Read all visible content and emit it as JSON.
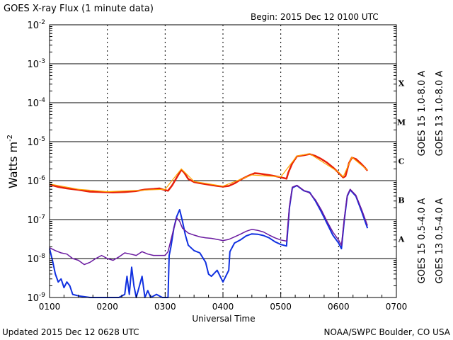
{
  "title": "GOES X-ray Flux (1 minute data)",
  "begin": "Begin: 2015 Dec 12 0100 UTC",
  "updated": "Updated 2015 Dec 12 0628 UTC",
  "credit": "NOAA/SWPC Boulder, CO USA",
  "chart_data": {
    "type": "line",
    "xlabel": "Universal Time",
    "ylabel": "Watts m",
    "ylabel_sup": "-2",
    "y_scale": "log",
    "ylim": [
      1e-09,
      0.01
    ],
    "xlim": [
      0,
      6
    ],
    "x_ticks": [
      {
        "v": 0,
        "label": "0100"
      },
      {
        "v": 1,
        "label": "0200"
      },
      {
        "v": 2,
        "label": "0300"
      },
      {
        "v": 3,
        "label": "0400"
      },
      {
        "v": 4,
        "label": "0500"
      },
      {
        "v": 5,
        "label": "0600"
      },
      {
        "v": 6,
        "label": "0700"
      }
    ],
    "y_ticks": [
      {
        "exp": -9,
        "base": "10",
        "sup": "-9"
      },
      {
        "exp": -8,
        "base": "10",
        "sup": "-8"
      },
      {
        "exp": -7,
        "base": "10",
        "sup": "-7"
      },
      {
        "exp": -6,
        "base": "10",
        "sup": "-6"
      },
      {
        "exp": -5,
        "base": "10",
        "sup": "-5"
      },
      {
        "exp": -4,
        "base": "10",
        "sup": "-4"
      },
      {
        "exp": -3,
        "base": "10",
        "sup": "-3"
      },
      {
        "exp": -2,
        "base": "10",
        "sup": "-2"
      }
    ],
    "flare_classes": [
      {
        "label": "A",
        "exp": -7.5
      },
      {
        "label": "B",
        "exp": -6.5
      },
      {
        "label": "C",
        "exp": -5.5
      },
      {
        "label": "M",
        "exp": -4.5
      },
      {
        "label": "X",
        "exp": -3.5
      }
    ],
    "grid": "horizontal lines at each decade, dashed vertical lines at each hour",
    "legend_placement": "right side, vertical",
    "series": [
      {
        "name": "GOES 15 1.0-8.0 A",
        "color": "#e8200a",
        "width": 2.5,
        "points": [
          [
            0,
            7.9e-07
          ],
          [
            0.15,
            6.9e-07
          ],
          [
            0.3,
            6.3e-07
          ],
          [
            0.5,
            5.8e-07
          ],
          [
            0.7,
            5.2e-07
          ],
          [
            0.9,
            5.1e-07
          ],
          [
            1.1,
            5e-07
          ],
          [
            1.3,
            5.1e-07
          ],
          [
            1.5,
            5.4e-07
          ],
          [
            1.65,
            5.9e-07
          ],
          [
            1.8,
            6.1e-07
          ],
          [
            1.9,
            6.3e-07
          ],
          [
            2.0,
            5.7e-07
          ],
          [
            2.05,
            5.5e-07
          ],
          [
            2.12,
            7.5e-07
          ],
          [
            2.2,
            1.2e-06
          ],
          [
            2.28,
            1.9e-06
          ],
          [
            2.33,
            1.6e-06
          ],
          [
            2.4,
            1.1e-06
          ],
          [
            2.5,
            9.2e-07
          ],
          [
            2.6,
            8.6e-07
          ],
          [
            2.75,
            7.9e-07
          ],
          [
            2.9,
            7.3e-07
          ],
          [
            3.0,
            7e-07
          ],
          [
            3.1,
            7.3e-07
          ],
          [
            3.2,
            8.5e-07
          ],
          [
            3.3,
            1.05e-06
          ],
          [
            3.45,
            1.35e-06
          ],
          [
            3.55,
            1.55e-06
          ],
          [
            3.65,
            1.5e-06
          ],
          [
            3.75,
            1.42e-06
          ],
          [
            3.85,
            1.35e-06
          ],
          [
            4.0,
            1.22e-06
          ],
          [
            4.1,
            1.12e-06
          ],
          [
            4.13,
            1.6e-06
          ],
          [
            4.2,
            2.8e-06
          ],
          [
            4.28,
            4.2e-06
          ],
          [
            4.4,
            4.5e-06
          ],
          [
            4.5,
            4.8e-06
          ],
          [
            4.6,
            4.3e-06
          ],
          [
            4.7,
            3.6e-06
          ],
          [
            4.8,
            2.9e-06
          ],
          [
            4.9,
            2.2e-06
          ],
          [
            5.0,
            1.6e-06
          ],
          [
            5.08,
            1.2e-06
          ],
          [
            5.12,
            1.3e-06
          ],
          [
            5.18,
            2.8e-06
          ],
          [
            5.23,
            3.9e-06
          ],
          [
            5.3,
            3.6e-06
          ],
          [
            5.38,
            2.8e-06
          ],
          [
            5.45,
            2.2e-06
          ],
          [
            5.5,
            1.8e-06
          ]
        ]
      },
      {
        "name": "GOES 13 1.0-8.0 A",
        "color": "#ffa500",
        "width": 1.2,
        "points": [
          [
            0,
            8.2e-07
          ],
          [
            0.5,
            6e-07
          ],
          [
            1.0,
            5.2e-07
          ],
          [
            1.5,
            5.6e-07
          ],
          [
            2.0,
            6e-07
          ],
          [
            2.28,
            2e-06
          ],
          [
            2.5,
            9.5e-07
          ],
          [
            3.0,
            7.2e-07
          ],
          [
            3.5,
            1.4e-06
          ],
          [
            4.0,
            1.25e-06
          ],
          [
            4.28,
            4.3e-06
          ],
          [
            4.5,
            4.9e-06
          ],
          [
            5.0,
            1.65e-06
          ],
          [
            5.08,
            1.25e-06
          ],
          [
            5.23,
            4e-06
          ],
          [
            5.5,
            1.85e-06
          ]
        ]
      },
      {
        "name": "GOES 15 0.5-4.0 A",
        "color": "#1030e0",
        "width": 2,
        "points": [
          [
            0,
            1.8e-08
          ],
          [
            0.05,
            9e-09
          ],
          [
            0.1,
            4e-09
          ],
          [
            0.15,
            2.5e-09
          ],
          [
            0.2,
            3e-09
          ],
          [
            0.25,
            1.8e-09
          ],
          [
            0.3,
            2.5e-09
          ],
          [
            0.35,
            2e-09
          ],
          [
            0.4,
            1.2e-09
          ],
          [
            0.5,
            1.1e-09
          ],
          [
            0.7,
            1e-09
          ],
          [
            1.0,
            1e-09
          ],
          [
            1.2,
            1e-09
          ],
          [
            1.3,
            1.2e-09
          ],
          [
            1.34,
            3.5e-09
          ],
          [
            1.38,
            1.2e-09
          ],
          [
            1.42,
            6e-09
          ],
          [
            1.46,
            2e-09
          ],
          [
            1.5,
            1e-09
          ],
          [
            1.6,
            3.5e-09
          ],
          [
            1.65,
            1e-09
          ],
          [
            1.7,
            1.5e-09
          ],
          [
            1.75,
            1e-09
          ],
          [
            1.85,
            1.2e-09
          ],
          [
            1.95,
            1e-09
          ],
          [
            2.05,
            1e-09
          ],
          [
            2.07,
            1.2e-08
          ],
          [
            2.1,
            2e-08
          ],
          [
            2.15,
            6e-08
          ],
          [
            2.2,
            1.2e-07
          ],
          [
            2.25,
            1.8e-07
          ],
          [
            2.3,
            9e-08
          ],
          [
            2.35,
            4e-08
          ],
          [
            2.4,
            2.2e-08
          ],
          [
            2.5,
            1.6e-08
          ],
          [
            2.6,
            1.4e-08
          ],
          [
            2.7,
            8e-09
          ],
          [
            2.75,
            4e-09
          ],
          [
            2.8,
            3.5e-09
          ],
          [
            2.9,
            5e-09
          ],
          [
            3.0,
            2.5e-09
          ],
          [
            3.1,
            5e-09
          ],
          [
            3.12,
            1.5e-08
          ],
          [
            3.2,
            2.5e-08
          ],
          [
            3.3,
            3e-08
          ],
          [
            3.4,
            3.8e-08
          ],
          [
            3.5,
            4.3e-08
          ],
          [
            3.6,
            4.2e-08
          ],
          [
            3.7,
            3.9e-08
          ],
          [
            3.8,
            3.4e-08
          ],
          [
            3.9,
            2.7e-08
          ],
          [
            4.0,
            2.3e-08
          ],
          [
            4.1,
            2.1e-08
          ],
          [
            4.15,
            2e-07
          ],
          [
            4.2,
            6.5e-07
          ],
          [
            4.28,
            7.5e-07
          ],
          [
            4.4,
            5.5e-07
          ],
          [
            4.5,
            5e-07
          ],
          [
            4.6,
            3e-07
          ],
          [
            4.7,
            1.6e-07
          ],
          [
            4.8,
            8e-08
          ],
          [
            4.9,
            4e-08
          ],
          [
            5.0,
            2.5e-08
          ],
          [
            5.05,
            1.8e-08
          ],
          [
            5.1,
            1e-07
          ],
          [
            5.15,
            4e-07
          ],
          [
            5.2,
            5.8e-07
          ],
          [
            5.3,
            4e-07
          ],
          [
            5.4,
            1.6e-07
          ],
          [
            5.5,
            6e-08
          ]
        ]
      },
      {
        "name": "GOES 13 0.5-4.0 A",
        "color": "#6a1aa0",
        "width": 1.5,
        "points": [
          [
            0,
            1.9e-08
          ],
          [
            0.1,
            1.6e-08
          ],
          [
            0.2,
            1.4e-08
          ],
          [
            0.3,
            1.3e-08
          ],
          [
            0.4,
            1e-08
          ],
          [
            0.5,
            9e-09
          ],
          [
            0.6,
            7e-09
          ],
          [
            0.7,
            8e-09
          ],
          [
            0.8,
            1e-08
          ],
          [
            0.9,
            1.2e-08
          ],
          [
            1.0,
            1e-08
          ],
          [
            1.1,
            9e-09
          ],
          [
            1.2,
            1.1e-08
          ],
          [
            1.3,
            1.4e-08
          ],
          [
            1.4,
            1.3e-08
          ],
          [
            1.5,
            1.2e-08
          ],
          [
            1.6,
            1.5e-08
          ],
          [
            1.7,
            1.3e-08
          ],
          [
            1.8,
            1.2e-08
          ],
          [
            1.9,
            1.2e-08
          ],
          [
            2.0,
            1.2e-08
          ],
          [
            2.05,
            1.5e-08
          ],
          [
            2.1,
            3e-08
          ],
          [
            2.15,
            6e-08
          ],
          [
            2.2,
            1.1e-07
          ],
          [
            2.25,
            9e-08
          ],
          [
            2.3,
            6e-08
          ],
          [
            2.4,
            4.5e-08
          ],
          [
            2.5,
            4e-08
          ],
          [
            2.6,
            3.6e-08
          ],
          [
            2.7,
            3.4e-08
          ],
          [
            2.8,
            3.3e-08
          ],
          [
            2.9,
            3.1e-08
          ],
          [
            3.0,
            2.9e-08
          ],
          [
            3.1,
            3.1e-08
          ],
          [
            3.2,
            3.6e-08
          ],
          [
            3.3,
            4.2e-08
          ],
          [
            3.4,
            5e-08
          ],
          [
            3.5,
            5.6e-08
          ],
          [
            3.6,
            5.3e-08
          ],
          [
            3.7,
            4.8e-08
          ],
          [
            3.8,
            4e-08
          ],
          [
            3.9,
            3.4e-08
          ],
          [
            4.0,
            3e-08
          ],
          [
            4.1,
            2.8e-08
          ],
          [
            4.15,
            2.2e-07
          ],
          [
            4.2,
            6.8e-07
          ],
          [
            4.28,
            7.6e-07
          ],
          [
            4.4,
            5.6e-07
          ],
          [
            4.5,
            4.8e-07
          ],
          [
            4.6,
            3.2e-07
          ],
          [
            4.7,
            1.8e-07
          ],
          [
            4.8,
            9e-08
          ],
          [
            4.9,
            4.8e-08
          ],
          [
            5.0,
            3e-08
          ],
          [
            5.05,
            2.2e-08
          ],
          [
            5.1,
            1.1e-07
          ],
          [
            5.15,
            4.2e-07
          ],
          [
            5.2,
            6e-07
          ],
          [
            5.3,
            4.2e-07
          ],
          [
            5.4,
            1.8e-07
          ],
          [
            5.5,
            7e-08
          ]
        ]
      }
    ]
  }
}
